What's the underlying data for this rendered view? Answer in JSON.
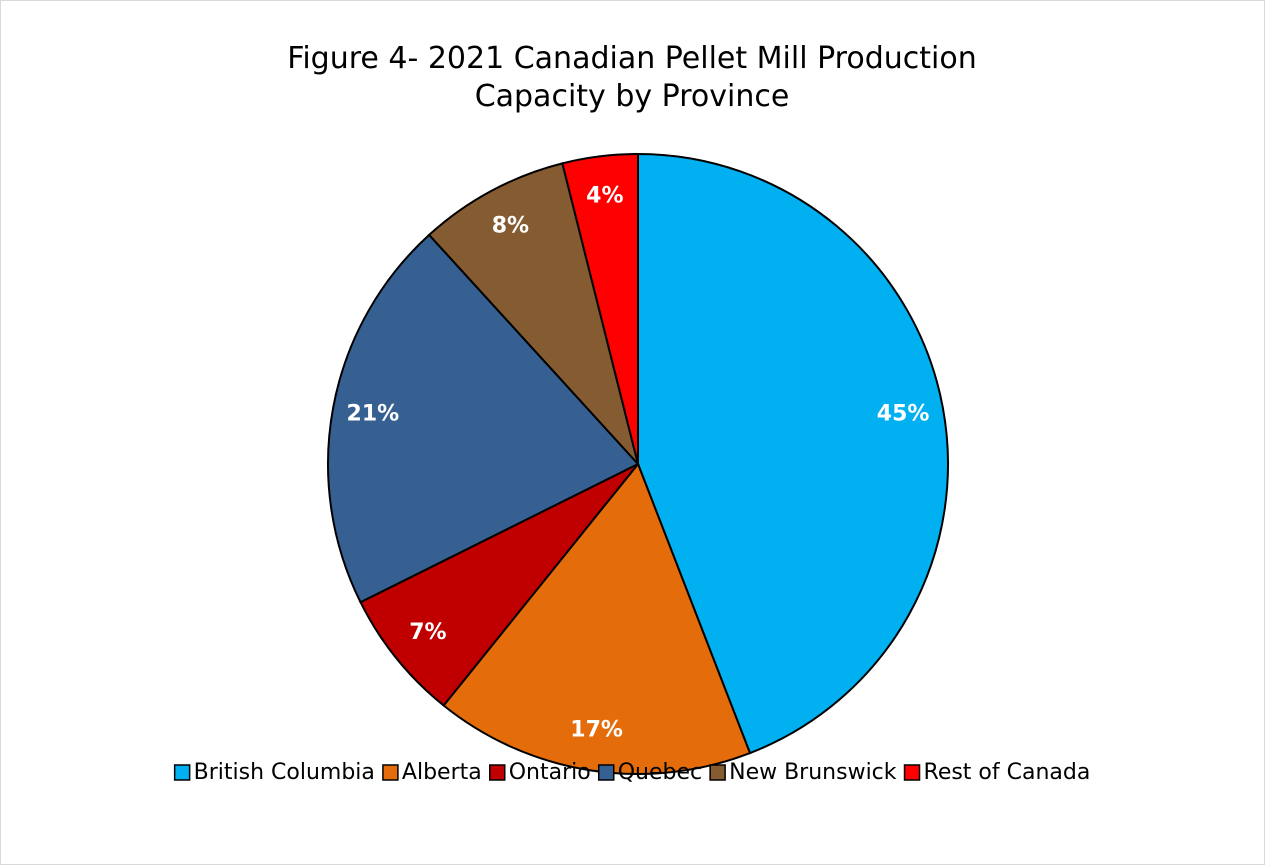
{
  "chart_data": {
    "type": "pie",
    "title": "Figure 4- 2021 Canadian Pellet Mill Production Capacity by Province",
    "categories": [
      "British Columbia",
      "Alberta",
      "Ontario",
      "Quebec",
      "New Brunswick",
      "Rest of Canada"
    ],
    "values": [
      45,
      17,
      7,
      21,
      8,
      4
    ],
    "value_labels": [
      "45%",
      "17%",
      "7%",
      "21%",
      "8%",
      "4%"
    ],
    "colors": [
      "#00b0f0",
      "#e46c0a",
      "#c00000",
      "#376092",
      "#855b32",
      "#ff0000"
    ],
    "legend": "bottom"
  }
}
